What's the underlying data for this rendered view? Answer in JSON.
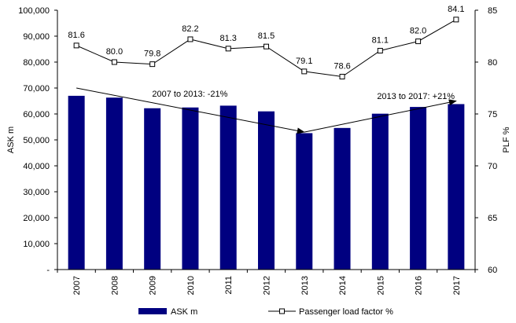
{
  "chart_data": {
    "type": "bar",
    "categories": [
      "2007",
      "2008",
      "2009",
      "2010",
      "2011",
      "2012",
      "2013",
      "2014",
      "2015",
      "2016",
      "2017"
    ],
    "series": [
      {
        "name": "ASK m",
        "type": "bar",
        "axis": "left",
        "color": "#000080",
        "values": [
          67000,
          66300,
          62200,
          62500,
          63200,
          61000,
          52600,
          54600,
          60100,
          62700,
          63800
        ]
      },
      {
        "name": "Passenger load factor %",
        "type": "line",
        "axis": "right",
        "color": "#000000",
        "marker": "hollow-square",
        "values": [
          81.6,
          80.0,
          79.8,
          82.2,
          81.3,
          81.5,
          79.1,
          78.6,
          81.1,
          82.0,
          84.1
        ],
        "labels": [
          "81.6",
          "80.0",
          "79.8",
          "82.2",
          "81.3",
          "81.5",
          "79.1",
          "78.6",
          "81.1",
          "82.0",
          "84.1"
        ]
      }
    ],
    "ylabel_left": "ASK m",
    "ylabel_right": "PLF %",
    "ylim_left": [
      0,
      100000
    ],
    "ylim_right": [
      60,
      85
    ],
    "yticks_left": [
      {
        "v": 0,
        "label": "-"
      },
      {
        "v": 10000,
        "label": "10,000"
      },
      {
        "v": 20000,
        "label": "20,000"
      },
      {
        "v": 30000,
        "label": "30,000"
      },
      {
        "v": 40000,
        "label": "40,000"
      },
      {
        "v": 50000,
        "label": "50,000"
      },
      {
        "v": 60000,
        "label": "60,000"
      },
      {
        "v": 70000,
        "label": "70,000"
      },
      {
        "v": 80000,
        "label": "80,000"
      },
      {
        "v": 90000,
        "label": "90,000"
      },
      {
        "v": 100000,
        "label": "100,000"
      }
    ],
    "yticks_right": [
      {
        "v": 60,
        "label": "60"
      },
      {
        "v": 65,
        "label": "65"
      },
      {
        "v": 70,
        "label": "70"
      },
      {
        "v": 75,
        "label": "75"
      },
      {
        "v": 80,
        "label": "80"
      },
      {
        "v": 85,
        "label": "85"
      }
    ],
    "annotations": [
      {
        "text": "2007 to 2013: -21%",
        "from": {
          "x": "2007",
          "y": 70000
        },
        "to": {
          "x": "2013",
          "y": 53000
        }
      },
      {
        "text": "2013 to 2017: +21%",
        "from": {
          "x": "2013",
          "y": 53000
        },
        "to": {
          "x": "2017",
          "y": 65000
        }
      }
    ],
    "legend_position": "bottom",
    "grid": false
  }
}
